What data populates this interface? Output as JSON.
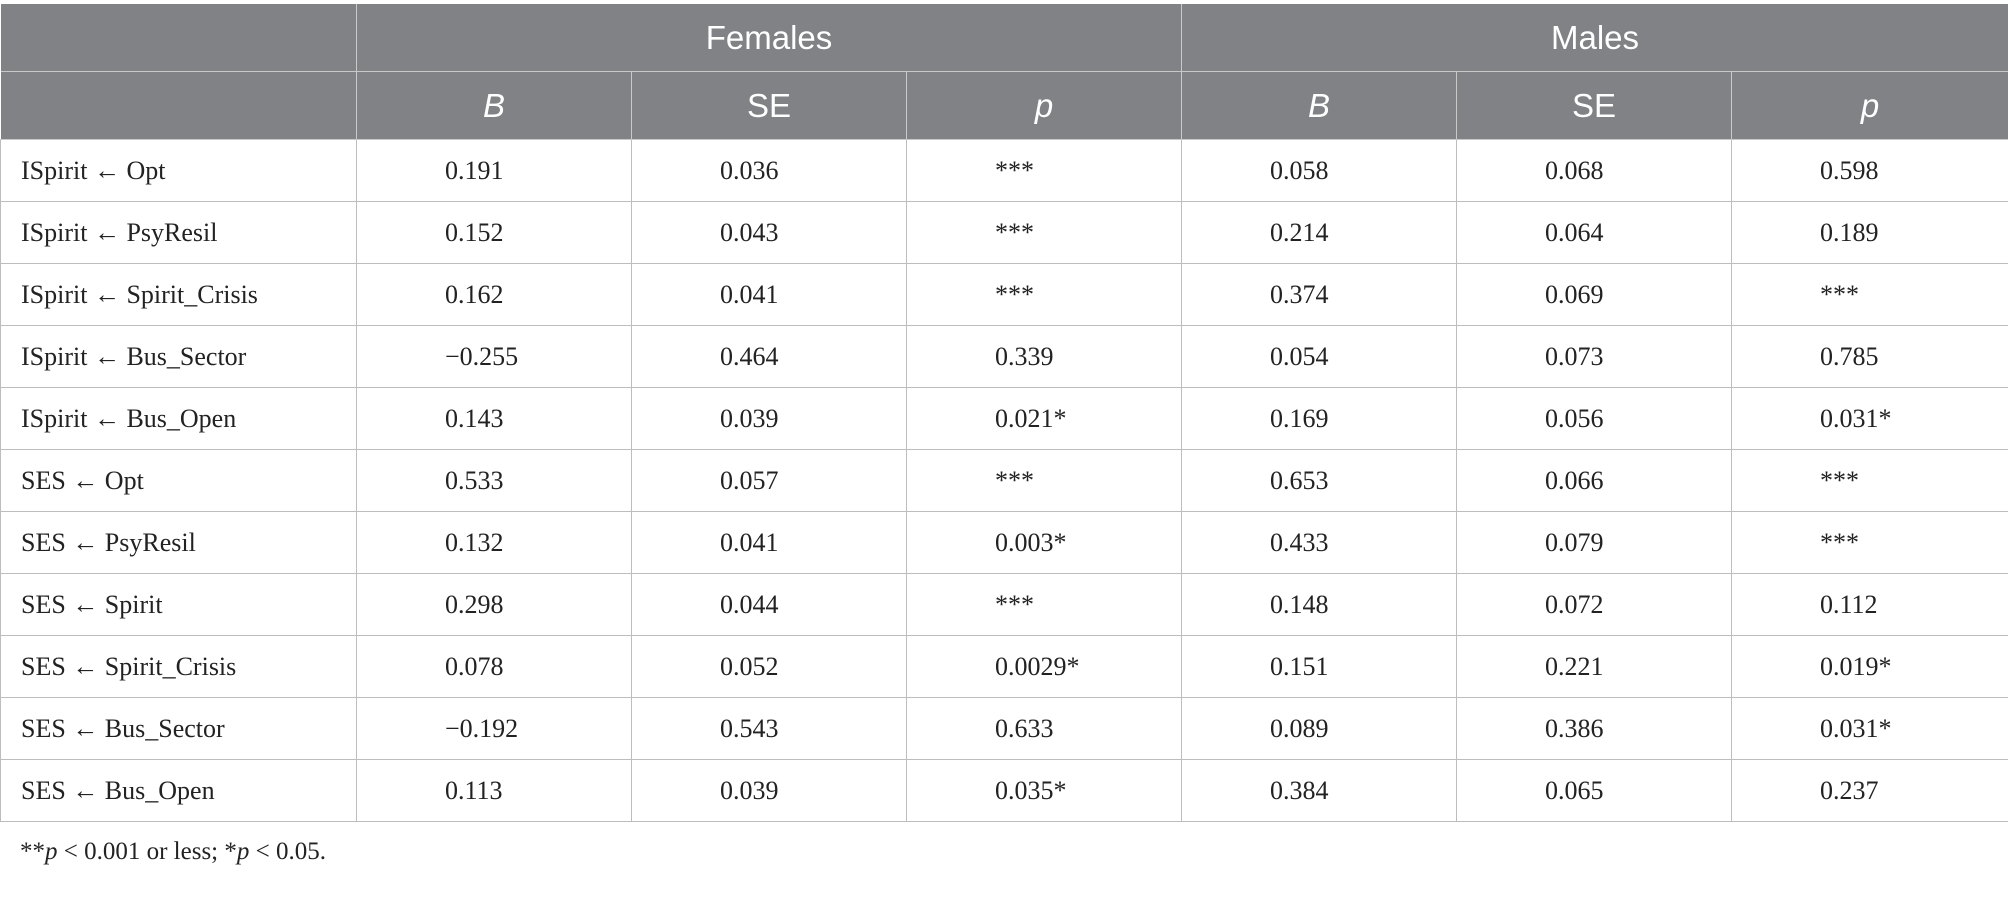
{
  "table": {
    "group_headers": [
      "",
      "Females",
      "Males"
    ],
    "sub_headers": [
      "",
      "B",
      "SE",
      "p",
      "B",
      "SE",
      "p"
    ],
    "rows": [
      [
        "ISpirit ← Opt",
        "0.191",
        "0.036",
        "***",
        "0.058",
        "0.068",
        "0.598"
      ],
      [
        "ISpirit ← PsyResil",
        "0.152",
        "0.043",
        "***",
        "0.214",
        "0.064",
        "0.189"
      ],
      [
        "ISpirit ← Spirit_Crisis",
        "0.162",
        "0.041",
        "***",
        "0.374",
        "0.069",
        "***"
      ],
      [
        "ISpirit ← Bus_Sector",
        "−0.255",
        "0.464",
        "0.339",
        "0.054",
        "0.073",
        "0.785"
      ],
      [
        "ISpirit ← Bus_Open",
        "0.143",
        "0.039",
        "0.021*",
        "0.169",
        "0.056",
        "0.031*"
      ],
      [
        "SES ← Opt",
        "0.533",
        "0.057",
        "***",
        "0.653",
        "0.066",
        "***"
      ],
      [
        "SES ← PsyResil",
        "0.132",
        "0.041",
        "0.003*",
        "0.433",
        "0.079",
        "***"
      ],
      [
        "SES ← Spirit",
        "0.298",
        "0.044",
        "***",
        "0.148",
        "0.072",
        "0.112"
      ],
      [
        "SES ← Spirit_Crisis",
        "0.078",
        "0.052",
        "0.0029*",
        "0.151",
        "0.221",
        "0.019*"
      ],
      [
        "SES ← Bus_Sector",
        "−0.192",
        "0.543",
        "0.633",
        "0.089",
        "0.386",
        "0.031*"
      ],
      [
        "SES ← Bus_Open",
        "0.113",
        "0.039",
        "0.035*",
        "0.384",
        "0.065",
        "0.237"
      ]
    ]
  },
  "footnote": {
    "part1": "**",
    "p1": "p",
    "part2": " < 0.001 or less; *",
    "p2": "p",
    "part3": " < 0.05."
  },
  "colors": {
    "header_bg": "#808285",
    "header_text": "#ffffff",
    "border": "#bdbdbd"
  }
}
